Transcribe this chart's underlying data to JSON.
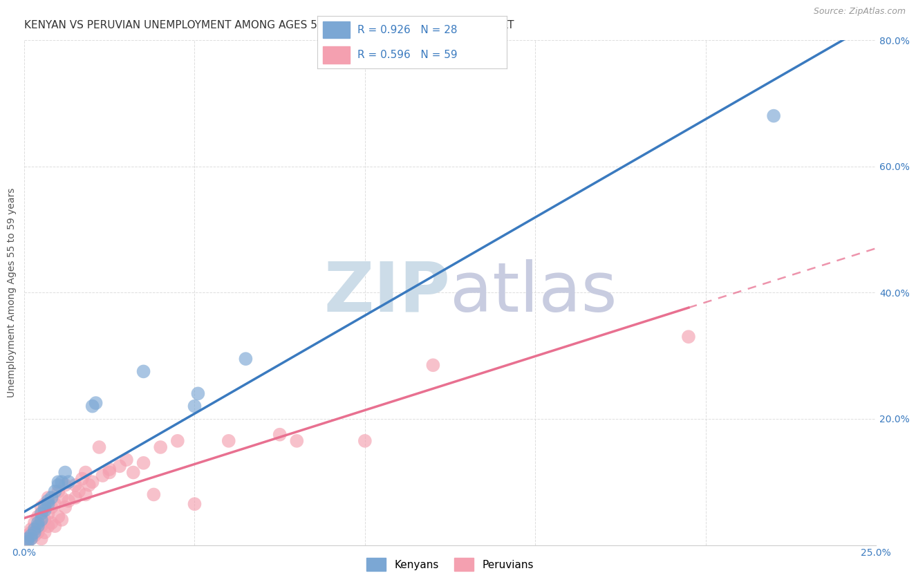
{
  "title": "KENYAN VS PERUVIAN UNEMPLOYMENT AMONG AGES 55 TO 59 YEARS CORRELATION CHART",
  "source": "Source: ZipAtlas.com",
  "ylabel": "Unemployment Among Ages 55 to 59 years",
  "xlim": [
    0.0,
    0.25
  ],
  "ylim": [
    0.0,
    0.8
  ],
  "xticks": [
    0.0,
    0.05,
    0.1,
    0.15,
    0.2,
    0.25
  ],
  "yticks": [
    0.0,
    0.2,
    0.4,
    0.6,
    0.8
  ],
  "xticklabels": [
    "0.0%",
    "",
    "",
    "",
    "",
    "25.0%"
  ],
  "yticklabels": [
    "",
    "20.0%",
    "40.0%",
    "60.0%",
    "80.0%"
  ],
  "kenya_R": 0.926,
  "kenya_N": 28,
  "peru_R": 0.596,
  "peru_N": 59,
  "kenya_color": "#7ba7d4",
  "peru_color": "#f4a0b0",
  "kenya_line_color": "#3a7abf",
  "peru_line_color": "#e87090",
  "background_color": "#ffffff",
  "grid_color": "#dddddd",
  "watermark_color_zip": "#ccdce8",
  "watermark_color_atlas": "#c8cce0",
  "kenya_scatter_x": [
    0.001,
    0.001,
    0.002,
    0.002,
    0.003,
    0.003,
    0.004,
    0.004,
    0.005,
    0.005,
    0.006,
    0.006,
    0.007,
    0.007,
    0.008,
    0.009,
    0.01,
    0.01,
    0.011,
    0.012,
    0.013,
    0.02,
    0.021,
    0.035,
    0.05,
    0.051,
    0.065,
    0.22
  ],
  "kenya_scatter_y": [
    0.005,
    0.01,
    0.01,
    0.015,
    0.02,
    0.025,
    0.03,
    0.035,
    0.04,
    0.05,
    0.055,
    0.06,
    0.065,
    0.07,
    0.075,
    0.085,
    0.095,
    0.1,
    0.1,
    0.115,
    0.1,
    0.22,
    0.225,
    0.275,
    0.22,
    0.24,
    0.295,
    0.68
  ],
  "peru_scatter_x": [
    0.001,
    0.001,
    0.001,
    0.002,
    0.002,
    0.002,
    0.003,
    0.003,
    0.003,
    0.004,
    0.004,
    0.004,
    0.005,
    0.005,
    0.005,
    0.005,
    0.006,
    0.006,
    0.006,
    0.007,
    0.007,
    0.007,
    0.008,
    0.008,
    0.009,
    0.009,
    0.01,
    0.01,
    0.011,
    0.011,
    0.012,
    0.012,
    0.013,
    0.015,
    0.015,
    0.016,
    0.017,
    0.018,
    0.018,
    0.019,
    0.02,
    0.022,
    0.023,
    0.025,
    0.025,
    0.028,
    0.03,
    0.032,
    0.035,
    0.038,
    0.04,
    0.045,
    0.05,
    0.06,
    0.075,
    0.08,
    0.1,
    0.12,
    0.195
  ],
  "peru_scatter_y": [
    0.005,
    0.01,
    0.015,
    0.01,
    0.02,
    0.025,
    0.015,
    0.025,
    0.035,
    0.02,
    0.03,
    0.045,
    0.01,
    0.03,
    0.05,
    0.06,
    0.02,
    0.04,
    0.065,
    0.03,
    0.05,
    0.075,
    0.035,
    0.06,
    0.03,
    0.065,
    0.045,
    0.085,
    0.04,
    0.075,
    0.06,
    0.095,
    0.07,
    0.075,
    0.095,
    0.085,
    0.105,
    0.08,
    0.115,
    0.095,
    0.1,
    0.155,
    0.11,
    0.115,
    0.12,
    0.125,
    0.135,
    0.115,
    0.13,
    0.08,
    0.155,
    0.165,
    0.065,
    0.165,
    0.175,
    0.165,
    0.165,
    0.285,
    0.33
  ],
  "title_fontsize": 11,
  "axis_label_fontsize": 10,
  "tick_fontsize": 10,
  "legend_fontsize": 11
}
